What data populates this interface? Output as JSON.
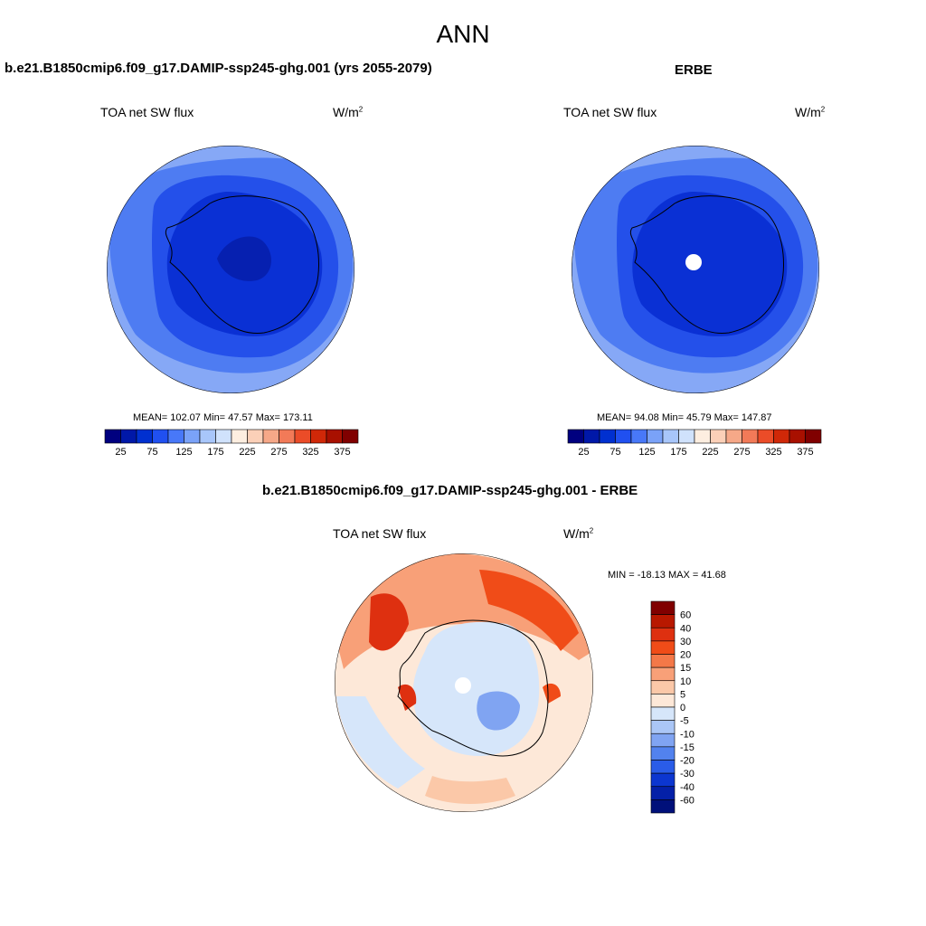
{
  "title": "ANN",
  "panels": [
    {
      "title": "b.e21.B1850cmip6.f09_g17.DAMIP-ssp245-ghg.001 (yrs 2055-2079)",
      "left_label": "TOA net SW flux",
      "units_base": "W/m",
      "units_exp": "2",
      "stats": "MEAN= 102.07  Min=  47.57  Max= 173.11"
    },
    {
      "title": "ERBE",
      "left_label": "TOA net SW flux",
      "units_base": "W/m",
      "units_exp": "2",
      "stats": "MEAN=  94.08  Min=  45.79  Max= 147.87"
    },
    {
      "title": "b.e21.B1850cmip6.f09_g17.DAMIP-ssp245-ghg.001 - ERBE",
      "left_label": "TOA net SW flux",
      "units_base": "W/m",
      "units_exp": "2",
      "stats": "MIN = -18.13 MAX =  41.68"
    }
  ],
  "colorbar_field": {
    "colors": [
      "#00007f",
      "#0018a8",
      "#0030d0",
      "#2050f0",
      "#4878f8",
      "#7aa2f8",
      "#a8c6fa",
      "#d0e2fc",
      "#fdeee0",
      "#fbd0b8",
      "#f6a888",
      "#f27a58",
      "#eb4c28",
      "#d02808",
      "#a81000",
      "#800000"
    ],
    "tick_labels": [
      "25",
      "75",
      "125",
      "175",
      "225",
      "275",
      "325",
      "375"
    ]
  },
  "colorbar_diff": {
    "colors": [
      "#800000",
      "#b81800",
      "#de3010",
      "#f04c18",
      "#f47848",
      "#f8a078",
      "#fbc8a8",
      "#fde8d8",
      "#d6e6fa",
      "#aac6f6",
      "#80a4f2",
      "#5282ee",
      "#2a5ce8",
      "#0c36d0",
      "#0420a8",
      "#00107a"
    ],
    "tick_labels": [
      "60",
      "40",
      "30",
      "20",
      "15",
      "10",
      "5",
      "0",
      "-5",
      "-10",
      "-15",
      "-20",
      "-30",
      "-40",
      "-60"
    ]
  }
}
